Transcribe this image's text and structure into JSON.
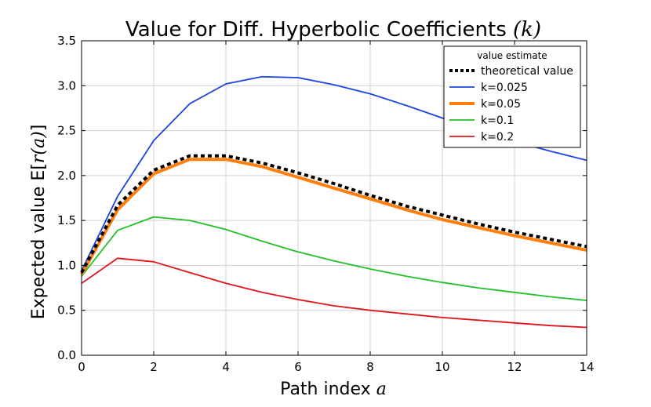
{
  "chart_data": {
    "type": "line",
    "title": "Value for Diff. Hyperbolic Coefficients",
    "title_var": "(k)",
    "xlabel": "Path index",
    "xlabel_var": "a",
    "ylabel": "Expected value E[",
    "ylabel_var": "r(a)",
    "ylabel_close": "]",
    "xlim": [
      0,
      14
    ],
    "ylim": [
      0,
      3.5
    ],
    "xticks": [
      "0",
      "2",
      "4",
      "6",
      "8",
      "10",
      "12",
      "14"
    ],
    "yticks": [
      "0.0",
      "0.5",
      "1.0",
      "1.5",
      "2.0",
      "2.5",
      "3.0",
      "3.5"
    ],
    "grid": true,
    "legend": {
      "title": "value estimate",
      "position": "top-right"
    },
    "x": [
      0,
      1,
      2,
      3,
      4,
      5,
      6,
      7,
      8,
      9,
      10,
      11,
      12,
      13,
      14
    ],
    "series": [
      {
        "name": "theoretical value",
        "color": "#000000",
        "style": "dotted",
        "values": [
          0.92,
          1.67,
          2.06,
          2.22,
          2.22,
          2.14,
          2.03,
          1.91,
          1.78,
          1.66,
          1.56,
          1.46,
          1.37,
          1.29,
          1.21
        ]
      },
      {
        "name": "k=0.025",
        "color": "#1a44e0",
        "style": "solid",
        "values": [
          0.94,
          1.77,
          2.39,
          2.8,
          3.02,
          3.1,
          3.09,
          3.01,
          2.91,
          2.78,
          2.64,
          2.5,
          2.38,
          2.27,
          2.17
        ]
      },
      {
        "name": "k=0.05",
        "color": "#ff7f0e",
        "style": "solid-thick",
        "values": [
          0.9,
          1.62,
          2.02,
          2.18,
          2.18,
          2.1,
          1.98,
          1.86,
          1.74,
          1.62,
          1.51,
          1.42,
          1.33,
          1.25,
          1.17
        ]
      },
      {
        "name": "k=0.1",
        "color": "#22c02a",
        "style": "solid",
        "values": [
          0.88,
          1.39,
          1.54,
          1.5,
          1.4,
          1.27,
          1.15,
          1.05,
          0.96,
          0.88,
          0.81,
          0.75,
          0.7,
          0.65,
          0.61
        ]
      },
      {
        "name": "k=0.2",
        "color": "#e0141a",
        "style": "solid",
        "values": [
          0.8,
          1.08,
          1.04,
          0.92,
          0.8,
          0.7,
          0.62,
          0.55,
          0.5,
          0.46,
          0.42,
          0.39,
          0.36,
          0.33,
          0.31
        ]
      }
    ]
  }
}
